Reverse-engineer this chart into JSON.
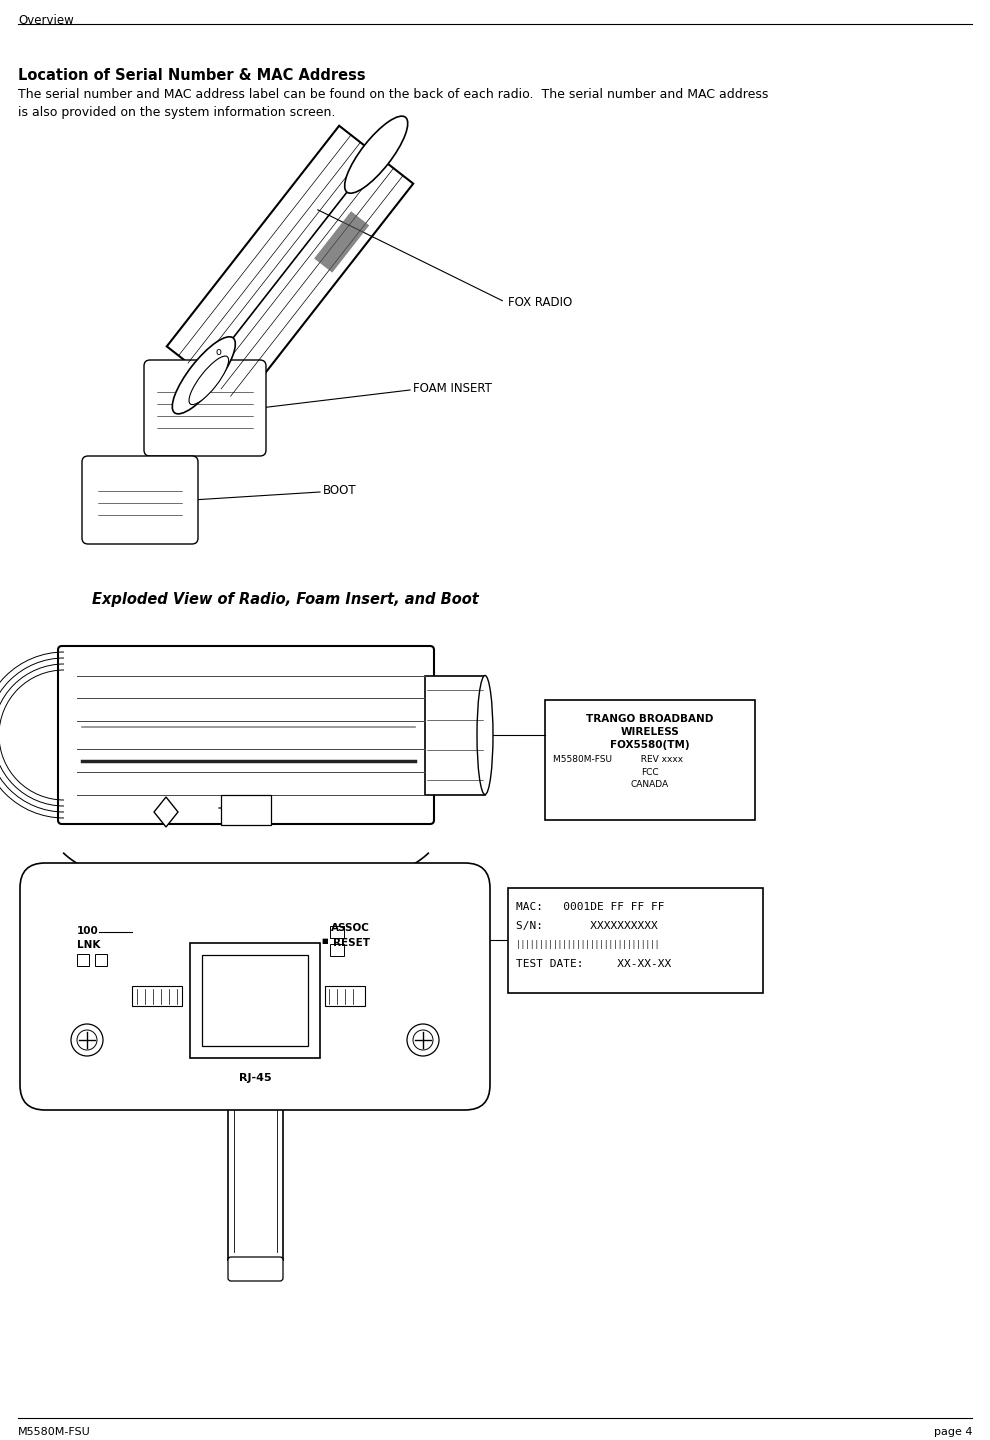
{
  "bg_color": "#ffffff",
  "header_text": "Overview",
  "footer_left": "M5580M-FSU",
  "footer_right": "page 4",
  "section_title": "Location of Serial Number & MAC Address",
  "body_text": "The serial number and MAC address label can be found on the back of each radio.  The serial number and MAC address\nis also provided on the system information screen.",
  "fig_caption1": "Exploded View of Radio, Foam Insert, and Boot",
  "label_fox_radio": "FOX RADIO",
  "label_foam_insert": "FOAM INSERT",
  "label_boot": "BOOT",
  "label_trango1": "TRANGO BROADBAND",
  "label_trango2": "WIRELESS",
  "label_trango3": "FOX5580(TM)",
  "label_trango4": "M5580M-FSU",
  "label_trango5": "REV xxxx",
  "label_trango6": "FCC",
  "label_trango7": "CANADA",
  "label_mac": "MAC:   0001DE FF FF FF",
  "label_sn": "S/N:       XXXXXXXXXX",
  "label_barcode": "|||||||||||||||||||||||||||||||",
  "label_testdate": "TEST DATE:     XX-XX-XX",
  "label_rj45": "RJ-45",
  "label_100": "100",
  "label_link": "LNK",
  "label_assoc": "ASSOC",
  "label_reset": "RESET",
  "line_color": "#000000",
  "text_color": "#000000"
}
